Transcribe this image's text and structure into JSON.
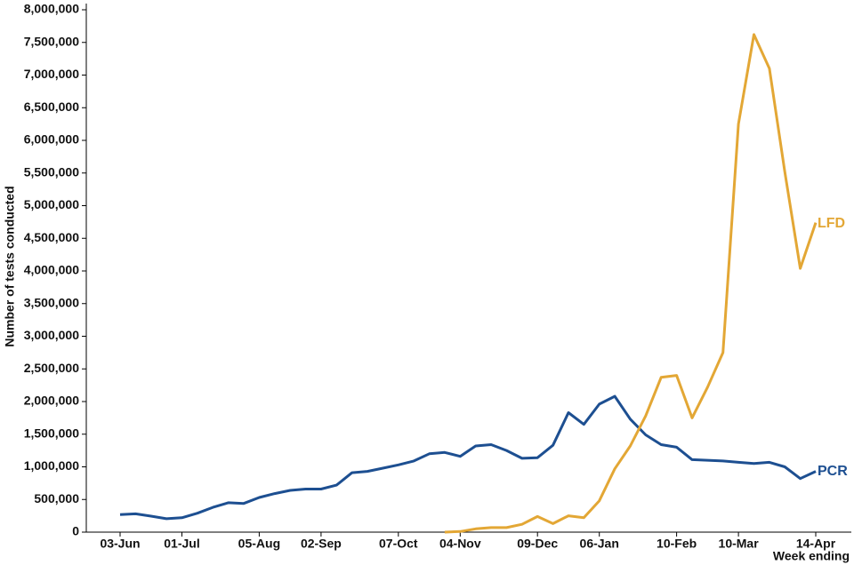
{
  "chart_data": {
    "type": "line",
    "y_label": "Number of tests conducted",
    "x_label": "Week ending",
    "categories": [
      "03-Jun",
      null,
      null,
      null,
      "01-Jul",
      null,
      null,
      null,
      null,
      "05-Aug",
      null,
      null,
      null,
      "02-Sep",
      null,
      null,
      null,
      null,
      "07-Oct",
      null,
      null,
      null,
      "04-Nov",
      null,
      null,
      null,
      null,
      "09-Dec",
      null,
      null,
      null,
      "06-Jan",
      null,
      null,
      null,
      null,
      "10-Feb",
      null,
      null,
      null,
      "10-Mar",
      null,
      null,
      null,
      null,
      "14-Apr"
    ],
    "series": [
      {
        "name": "PCR",
        "color": "#1d4f91",
        "values": [
          270000,
          280000,
          245000,
          205000,
          220000,
          290000,
          380000,
          450000,
          440000,
          530000,
          590000,
          640000,
          660000,
          660000,
          720000,
          910000,
          930000,
          980000,
          1030000,
          1090000,
          1200000,
          1220000,
          1160000,
          1320000,
          1340000,
          1250000,
          1130000,
          1140000,
          1330000,
          1830000,
          1650000,
          1960000,
          2080000,
          1730000,
          1490000,
          1340000,
          1300000,
          1110000,
          1100000,
          1090000,
          1070000,
          1050000,
          1070000,
          1000000,
          820000,
          930000
        ]
      },
      {
        "name": "LFD",
        "color": "#e3a735",
        "values": [
          null,
          null,
          null,
          null,
          null,
          null,
          null,
          null,
          null,
          null,
          null,
          null,
          null,
          null,
          null,
          null,
          null,
          null,
          null,
          null,
          null,
          0,
          10000,
          50000,
          70000,
          70000,
          120000,
          240000,
          130000,
          250000,
          220000,
          480000,
          970000,
          1320000,
          1780000,
          2370000,
          2400000,
          1750000,
          2220000,
          2750000,
          6250000,
          7620000,
          7100000,
          5520000,
          4040000,
          4740000
        ]
      }
    ],
    "ylim": [
      0,
      8000000
    ],
    "yticks": [
      0,
      {
        "value": 500000,
        "label": "500,000"
      },
      {
        "value": 1000000,
        "label": "1,000,000"
      },
      {
        "value": 1500000,
        "label": "1,500,000"
      },
      {
        "value": 2000000,
        "label": "2,000,000"
      },
      {
        "value": 2500000,
        "label": "2,500,000"
      },
      {
        "value": 3000000,
        "label": "3,000,000"
      },
      {
        "value": 3500000,
        "label": "3,500,000"
      },
      {
        "value": 4000000,
        "label": "4,000,000"
      },
      {
        "value": 4500000,
        "label": "4,500,000"
      },
      {
        "value": 5000000,
        "label": "5,000,000"
      },
      {
        "value": 5500000,
        "label": "5,500,000"
      },
      {
        "value": 6000000,
        "label": "6,000,000"
      },
      {
        "value": 6500000,
        "label": "6,500,000"
      },
      {
        "value": 7000000,
        "label": "7,000,000"
      },
      {
        "value": 7500000,
        "label": "7,500,000"
      },
      {
        "value": 8000000,
        "label": "8,000,000"
      }
    ],
    "grid": false
  }
}
